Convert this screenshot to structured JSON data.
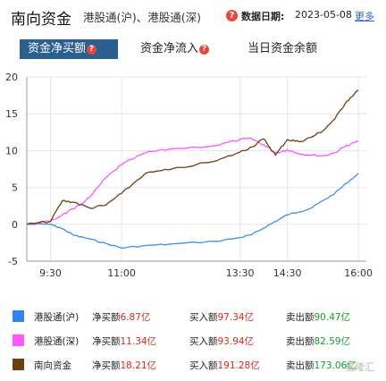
{
  "header": {
    "title": "南向资金",
    "subtitle": "港股通(沪)、港股通(深)",
    "help_icon": "?",
    "date_label": "数据日期:",
    "date": "2023-05-08",
    "more": "更多"
  },
  "tabs": [
    {
      "label": "资金净买额",
      "active": true
    },
    {
      "label": "资金净流入",
      "active": false
    },
    {
      "label": "当日资金余额",
      "active": false
    }
  ],
  "chart_data": {
    "type": "line",
    "x_ticks": [
      "9:30",
      "11:00",
      "13:30",
      "14:30",
      "16:00"
    ],
    "ylim": [
      -5,
      20
    ],
    "y_ticks": [
      "20",
      "15",
      "10",
      "5",
      "0",
      "-5"
    ],
    "grid": true,
    "series": [
      {
        "name": "港股通(沪)",
        "color": "#3d8ff0",
        "x": [
          "9:00",
          "9:30",
          "9:45",
          "10:00",
          "10:20",
          "10:40",
          "11:00",
          "11:30",
          "12:00",
          "13:00",
          "13:30",
          "13:45",
          "14:00",
          "14:15",
          "14:30",
          "14:45",
          "15:00",
          "15:15",
          "15:30",
          "15:45",
          "16:00"
        ],
        "y": [
          0,
          0,
          -0.6,
          -1.5,
          -2.0,
          -2.6,
          -3.2,
          -2.9,
          -2.7,
          -2.3,
          -1.8,
          -1.4,
          -0.5,
          0.4,
          1.3,
          1.7,
          2.2,
          3.2,
          4.2,
          5.6,
          6.9
        ]
      },
      {
        "name": "港股通(深)",
        "color": "#ff55ff",
        "x": [
          "9:00",
          "9:30",
          "9:45",
          "10:00",
          "10:20",
          "10:40",
          "11:00",
          "11:30",
          "12:00",
          "13:00",
          "13:30",
          "13:45",
          "14:00",
          "14:15",
          "14:30",
          "14:45",
          "15:00",
          "15:15",
          "15:30",
          "15:45",
          "16:00"
        ],
        "y": [
          0,
          0.4,
          1.3,
          2.1,
          3.7,
          6.3,
          8.1,
          9.7,
          10.2,
          10.7,
          11.5,
          11.6,
          10.8,
          9.7,
          10.1,
          9.6,
          9.4,
          9.3,
          9.7,
          10.7,
          11.3
        ]
      },
      {
        "name": "南向资金",
        "color": "#6b3f12",
        "x": [
          "9:00",
          "9:30",
          "9:45",
          "10:00",
          "10:20",
          "10:40",
          "11:00",
          "11:30",
          "12:00",
          "13:00",
          "13:30",
          "13:45",
          "14:00",
          "14:15",
          "14:30",
          "14:45",
          "15:00",
          "15:15",
          "15:30",
          "15:45",
          "16:00"
        ],
        "y": [
          0,
          0.4,
          3.2,
          3.0,
          2.2,
          2.6,
          4.2,
          6.9,
          7.4,
          8.6,
          9.8,
          10.5,
          11.6,
          9.4,
          11.5,
          11.2,
          11.8,
          12.7,
          14.3,
          16.7,
          18.2
        ]
      }
    ]
  },
  "legend": [
    {
      "name": "港股通(沪)",
      "color": "#2f84f2",
      "net_label": "净买额",
      "net": "6.87亿",
      "buy_label": "买入额",
      "buy": "97.34亿",
      "sell_label": "卖出额",
      "sell": "90.47亿"
    },
    {
      "name": "港股通(深)",
      "color": "#ff55ff",
      "net_label": "净买额",
      "net": "11.34亿",
      "buy_label": "买入额",
      "buy": "93.94亿",
      "sell_label": "卖出额",
      "sell": "82.59亿"
    },
    {
      "name": "南向资金",
      "color": "#6b3f12",
      "net_label": "净买额",
      "net": "18.21亿",
      "buy_label": "买入额",
      "buy": "191.28亿",
      "sell_label": "卖出额",
      "sell": "173.06亿"
    }
  ],
  "watermark": "格隆汇"
}
